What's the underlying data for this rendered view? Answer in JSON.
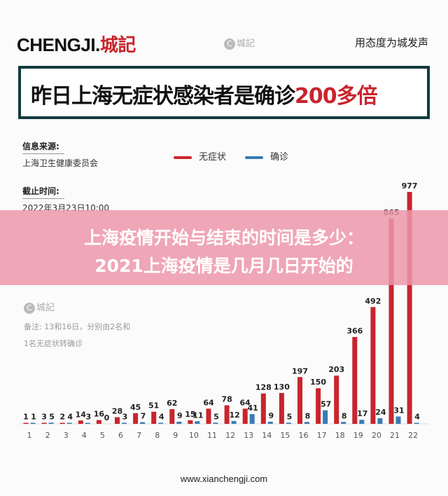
{
  "header": {
    "brand_main": "CHENGJI.",
    "brand_cn": "城記",
    "watermark": "城記",
    "slogan": "用态度为城发声"
  },
  "title": {
    "main": "昨日上海无症状感染者是确诊",
    "highlight": "200多倍"
  },
  "info": {
    "source_label": "信息来源:",
    "source_value": "上海卫生健康委员会",
    "deadline_label": "截止时间:",
    "deadline_value": "2022年3月23日10:00"
  },
  "legend": {
    "asymptomatic": "无症状",
    "confirmed": "确诊"
  },
  "note": {
    "line1": "备注: 13和16日，分别由2名和",
    "line2": "1名无症状转确诊"
  },
  "banner": {
    "line1": "上海疫情开始与结束的时间是多少：",
    "line2": "2021上海疫情是几月几日开始的"
  },
  "footer": {
    "url": "www.xianchengji.com"
  },
  "colors": {
    "asymptomatic": "#c8252d",
    "confirmed": "#3a7bb5",
    "title_border": "#123a3f"
  },
  "chart_data": {
    "type": "bar",
    "categories": [
      "1",
      "2",
      "3",
      "4",
      "5",
      "6",
      "7",
      "8",
      "9",
      "10",
      "11",
      "12",
      "13",
      "14",
      "15",
      "16",
      "17",
      "18",
      "19",
      "20",
      "21",
      "22"
    ],
    "series": [
      {
        "name": "无症状",
        "values": [
          1,
          3,
          2,
          14,
          16,
          28,
          45,
          51,
          62,
          15,
          64,
          78,
          64,
          128,
          130,
          197,
          150,
          203,
          366,
          492,
          865,
          977
        ]
      },
      {
        "name": "确诊",
        "values": [
          1,
          5,
          4,
          3,
          0,
          3,
          7,
          4,
          9,
          11,
          5,
          12,
          41,
          9,
          5,
          8,
          57,
          8,
          17,
          24,
          31,
          4
        ]
      }
    ],
    "legend_position": "top",
    "grid": false
  }
}
